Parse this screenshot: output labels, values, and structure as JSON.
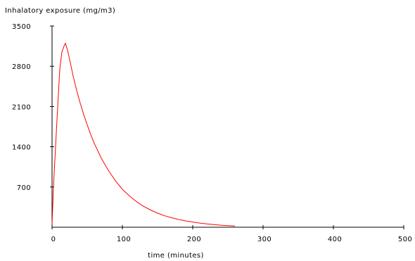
{
  "chart_data": {
    "type": "line",
    "title": "",
    "ylabel": "Inhalatory exposure (mg/m3)",
    "xlabel": "time (minutes)",
    "xlim": [
      0,
      500
    ],
    "ylim": [
      0,
      3500
    ],
    "x_ticks": [
      "0",
      "100",
      "200",
      "300",
      "400",
      "500"
    ],
    "y_ticks": [
      "700",
      "1400",
      "2100",
      "2800",
      "3500"
    ],
    "x_tick_values": [
      0,
      100,
      200,
      300,
      400,
      500
    ],
    "y_tick_values": [
      700,
      1400,
      2100,
      2800,
      3500
    ],
    "grid": false,
    "series": [
      {
        "color": "#ff0000",
        "x": [
          0,
          2,
          5,
          8,
          11,
          14,
          17,
          19,
          22,
          26,
          30,
          35,
          40,
          45,
          50,
          55,
          60,
          70,
          80,
          90,
          100,
          110,
          120,
          130,
          140,
          150,
          160,
          170,
          180,
          190,
          200,
          210,
          220,
          230,
          240,
          250,
          260
        ],
        "y": [
          50,
          700,
          1400,
          2100,
          2750,
          3050,
          3150,
          3200,
          3080,
          2860,
          2630,
          2380,
          2160,
          1960,
          1780,
          1610,
          1460,
          1200,
          990,
          810,
          660,
          545,
          445,
          365,
          300,
          245,
          200,
          165,
          135,
          110,
          90,
          72,
          58,
          46,
          36,
          28,
          22
        ]
      }
    ]
  }
}
